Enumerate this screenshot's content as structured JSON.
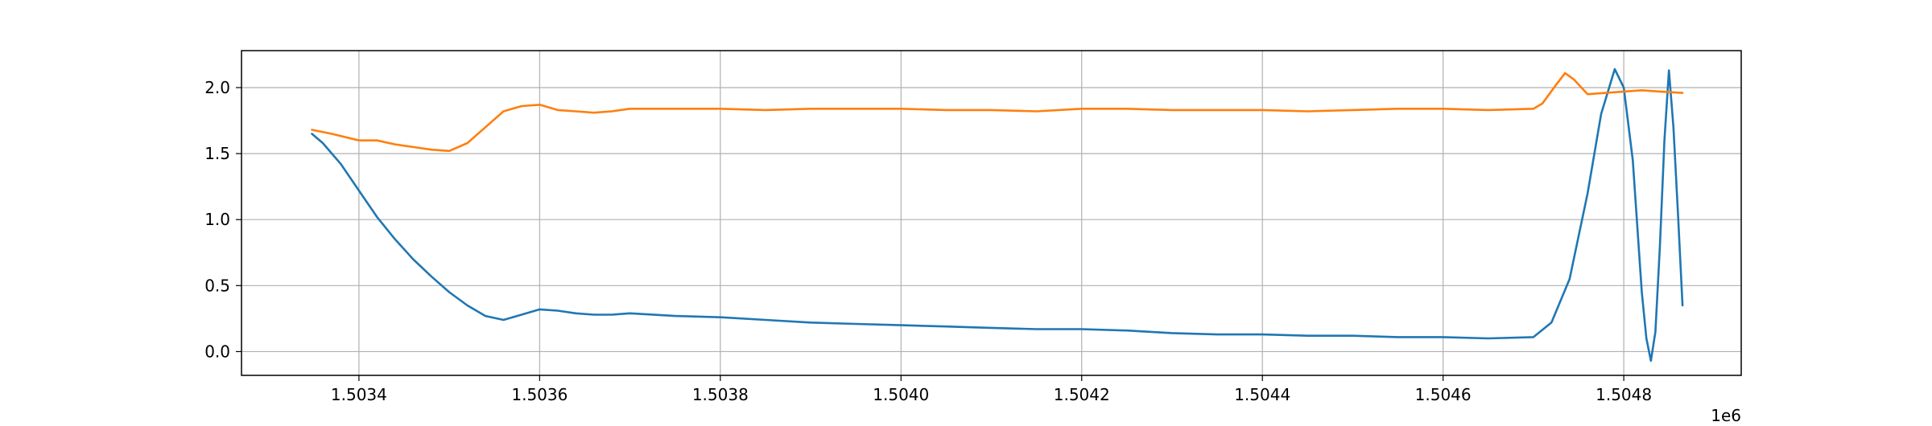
{
  "chart_data": {
    "type": "line",
    "title": "",
    "xlabel": "",
    "ylabel": "",
    "x_offset_label": "1e6",
    "xlim": [
      1503270,
      1504930
    ],
    "ylim": [
      -0.18,
      2.28
    ],
    "grid": true,
    "x_ticks": [
      1503400,
      1503600,
      1503800,
      1504000,
      1504200,
      1504400,
      1504600,
      1504800
    ],
    "x_tick_labels": [
      "1.5034",
      "1.5036",
      "1.5038",
      "1.5040",
      "1.5042",
      "1.5044",
      "1.5046",
      "1.5048"
    ],
    "y_ticks": [
      0.0,
      0.5,
      1.0,
      1.5,
      2.0
    ],
    "y_tick_labels": [
      "0.0",
      "0.5",
      "1.0",
      "1.5",
      "2.0"
    ],
    "series": [
      {
        "color": "#1f77b4",
        "x": [
          1503348,
          1503360,
          1503380,
          1503400,
          1503420,
          1503440,
          1503460,
          1503480,
          1503500,
          1503520,
          1503540,
          1503560,
          1503580,
          1503600,
          1503620,
          1503640,
          1503660,
          1503680,
          1503700,
          1503750,
          1503800,
          1503850,
          1503900,
          1503950,
          1504000,
          1504050,
          1504100,
          1504150,
          1504200,
          1504250,
          1504300,
          1504350,
          1504400,
          1504450,
          1504500,
          1504550,
          1504600,
          1504650,
          1504700,
          1504720,
          1504740,
          1504760,
          1504775,
          1504790,
          1504800,
          1504810,
          1504815,
          1504820,
          1504825,
          1504830,
          1504835,
          1504840,
          1504845,
          1504850,
          1504855,
          1504860,
          1504865
        ],
        "y": [
          1.65,
          1.58,
          1.42,
          1.22,
          1.02,
          0.85,
          0.7,
          0.57,
          0.45,
          0.35,
          0.27,
          0.24,
          0.28,
          0.32,
          0.31,
          0.29,
          0.28,
          0.28,
          0.29,
          0.27,
          0.26,
          0.24,
          0.22,
          0.21,
          0.2,
          0.19,
          0.18,
          0.17,
          0.17,
          0.16,
          0.14,
          0.13,
          0.13,
          0.12,
          0.12,
          0.11,
          0.11,
          0.1,
          0.11,
          0.22,
          0.55,
          1.2,
          1.8,
          2.14,
          2.0,
          1.45,
          0.95,
          0.45,
          0.1,
          -0.07,
          0.15,
          0.8,
          1.6,
          2.13,
          1.7,
          1.05,
          0.35
        ]
      },
      {
        "color": "#ff7f0e",
        "x": [
          1503348,
          1503370,
          1503400,
          1503420,
          1503440,
          1503460,
          1503480,
          1503500,
          1503520,
          1503540,
          1503560,
          1503580,
          1503600,
          1503620,
          1503640,
          1503660,
          1503680,
          1503700,
          1503750,
          1503800,
          1503850,
          1503900,
          1503950,
          1504000,
          1504050,
          1504100,
          1504150,
          1504200,
          1504250,
          1504300,
          1504350,
          1504400,
          1504450,
          1504500,
          1504550,
          1504600,
          1504650,
          1504700,
          1504710,
          1504725,
          1504735,
          1504745,
          1504760,
          1504780,
          1504800,
          1504820,
          1504840,
          1504865
        ],
        "y": [
          1.68,
          1.65,
          1.6,
          1.6,
          1.57,
          1.55,
          1.53,
          1.52,
          1.58,
          1.7,
          1.82,
          1.86,
          1.87,
          1.83,
          1.82,
          1.81,
          1.82,
          1.84,
          1.84,
          1.84,
          1.83,
          1.84,
          1.84,
          1.84,
          1.83,
          1.83,
          1.82,
          1.84,
          1.84,
          1.83,
          1.83,
          1.83,
          1.82,
          1.83,
          1.84,
          1.84,
          1.83,
          1.84,
          1.88,
          2.02,
          2.11,
          2.06,
          1.95,
          1.96,
          1.97,
          1.98,
          1.97,
          1.96
        ]
      }
    ]
  }
}
